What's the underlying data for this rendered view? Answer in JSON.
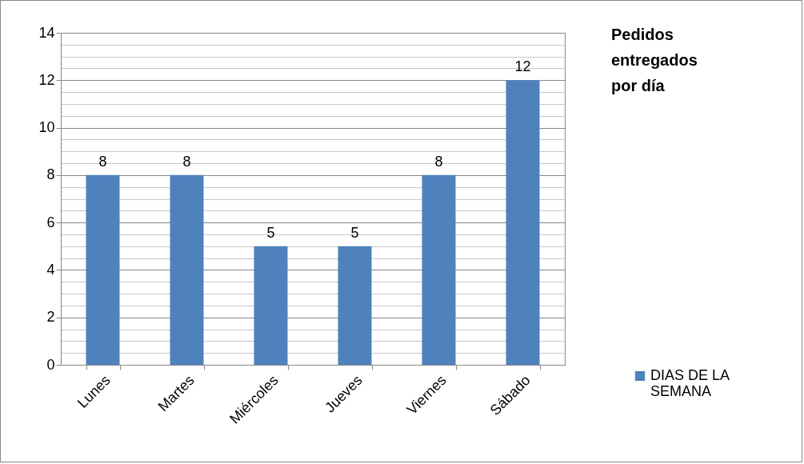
{
  "chart_data": {
    "type": "bar",
    "title": "Pedidos entregados por día",
    "categories": [
      "Lunes",
      "Martes",
      "Miércoles",
      "Jueves",
      "Viernes",
      "Sábado"
    ],
    "series": [
      {
        "name": "DIAS DE LA SEMANA",
        "color": "#4f81bd",
        "values": [
          8,
          8,
          5,
          5,
          8,
          12
        ]
      }
    ],
    "ylim": [
      0,
      14
    ],
    "yticks": [
      0,
      2,
      4,
      6,
      8,
      10,
      12,
      14
    ],
    "grid": "y",
    "legend": "right",
    "data_labels": true
  }
}
